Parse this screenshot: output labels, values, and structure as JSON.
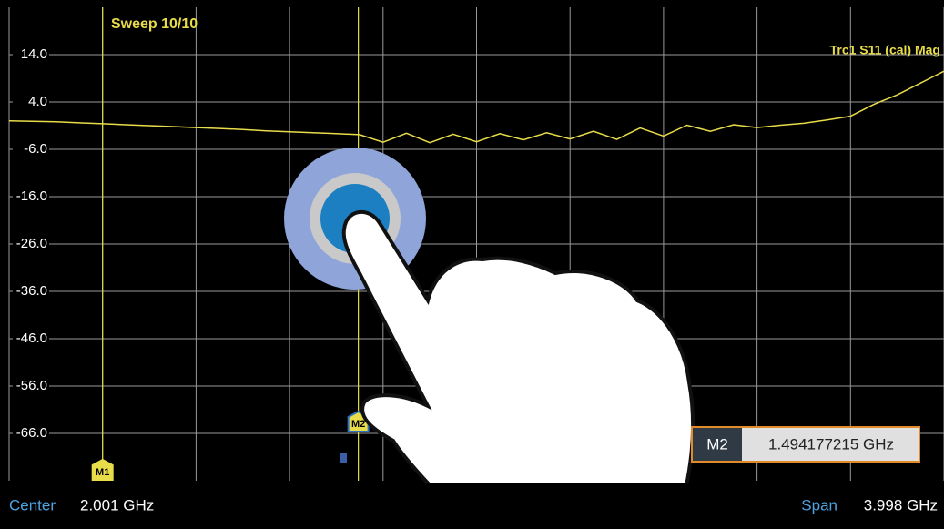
{
  "chart_data": {
    "type": "line",
    "title": "Sweep 10/10",
    "trace_label": "Trc1 S11 (cal) Mag",
    "x": [
      0.0,
      0.1,
      0.2,
      0.3,
      0.4,
      0.5,
      0.6,
      0.7,
      0.8,
      0.9,
      1.0,
      1.1,
      1.2,
      1.3,
      1.4,
      1.5,
      1.6,
      1.7,
      1.8,
      1.9,
      2.0,
      2.1,
      2.2,
      2.3,
      2.4,
      2.5,
      2.6,
      2.7,
      2.8,
      2.9,
      3.0,
      3.1,
      3.2,
      3.3,
      3.4,
      3.5,
      3.6,
      3.7,
      3.8,
      3.9,
      4.0
    ],
    "series": [
      {
        "name": "Trc1",
        "color": "#e8dc4a",
        "values": [
          0.0,
          -0.1,
          -0.2,
          -0.4,
          -0.6,
          -0.8,
          -1.0,
          -1.2,
          -1.4,
          -1.6,
          -1.8,
          -2.1,
          -2.3,
          -2.5,
          -2.7,
          -2.9,
          -4.5,
          -2.6,
          -4.6,
          -2.8,
          -4.4,
          -2.7,
          -4.0,
          -2.5,
          -3.8,
          -2.2,
          -3.9,
          -1.5,
          -3.2,
          -0.9,
          -2.2,
          -0.8,
          -1.4,
          -0.9,
          -0.5,
          0.2,
          1.0,
          3.5,
          5.5,
          8.0,
          10.5
        ]
      }
    ],
    "xlim": [
      0,
      4
    ],
    "xticks": [
      0,
      0.4,
      0.8,
      1.2,
      1.6,
      2.0,
      2.4,
      2.8,
      3.2,
      3.6,
      4.0
    ],
    "ylim": [
      -76,
      24
    ],
    "yticks": [
      {
        "value": 14,
        "label": "14.0"
      },
      {
        "value": 4,
        "label": "4.0"
      },
      {
        "value": -6,
        "label": "-6.0"
      },
      {
        "value": -16,
        "label": "-16.0"
      },
      {
        "value": -26,
        "label": "-26.0"
      },
      {
        "value": -36,
        "label": "-36.0"
      },
      {
        "value": -46,
        "label": "-46.0"
      },
      {
        "value": -56,
        "label": "-56.0"
      },
      {
        "value": -66,
        "label": "-66.0"
      }
    ],
    "grid": true,
    "markers": [
      {
        "label": "M1",
        "x": 0.4
      },
      {
        "label": "M2",
        "x": 1.494177215
      }
    ],
    "readout": {
      "marker": "M2",
      "value": "1.494177215 GHz"
    },
    "center": {
      "label": "Center",
      "value": "2.001 GHz"
    },
    "span": {
      "label": "Span",
      "value": "3.998 GHz"
    }
  }
}
